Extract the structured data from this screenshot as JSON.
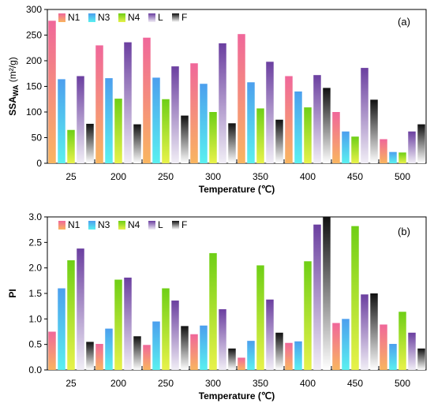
{
  "chart_data": [
    {
      "type": "bar",
      "panel": "(a)",
      "xlabel": "Temperature (℃)",
      "ylabel_main": "SSA",
      "ylabel_sub": "WA",
      "ylabel_unit": " (m²/g)",
      "ylim": [
        0,
        300
      ],
      "yticks": [
        0,
        50,
        100,
        150,
        200,
        250,
        300
      ],
      "categories": [
        "25",
        "200",
        "250",
        "300",
        "350",
        "400",
        "450",
        "500"
      ],
      "legend_position": "top-left",
      "series": [
        {
          "name": "N1",
          "values": [
            278,
            230,
            245,
            195,
            252,
            170,
            100,
            47
          ]
        },
        {
          "name": "N3",
          "values": [
            164,
            166,
            167,
            155,
            158,
            140,
            62,
            22
          ]
        },
        {
          "name": "N4",
          "values": [
            65,
            126,
            125,
            100,
            107,
            109,
            52,
            21
          ]
        },
        {
          "name": "L",
          "values": [
            170,
            236,
            189,
            234,
            198,
            172,
            186,
            62
          ]
        },
        {
          "name": "F",
          "values": [
            77,
            76,
            93,
            78,
            85,
            147,
            124,
            76
          ]
        }
      ]
    },
    {
      "type": "bar",
      "panel": "(b)",
      "xlabel": "Temperature (℃)",
      "ylabel_main": "PI",
      "ylim": [
        0,
        3.0
      ],
      "yticks": [
        "0.0",
        "0.5",
        "1.0",
        "1.5",
        "2.0",
        "2.5",
        "3.0"
      ],
      "categories": [
        "25",
        "200",
        "250",
        "300",
        "350",
        "400",
        "450",
        "500"
      ],
      "legend_position": "top-left",
      "series": [
        {
          "name": "N1",
          "values": [
            0.75,
            0.51,
            0.49,
            0.7,
            0.24,
            0.53,
            0.92,
            0.89
          ]
        },
        {
          "name": "N3",
          "values": [
            1.6,
            0.81,
            0.95,
            0.87,
            0.57,
            0.56,
            1.0,
            0.51
          ]
        },
        {
          "name": "N4",
          "values": [
            2.15,
            1.77,
            1.6,
            2.29,
            2.05,
            2.13,
            2.82,
            1.14
          ]
        },
        {
          "name": "L",
          "values": [
            2.38,
            1.81,
            1.36,
            1.19,
            1.38,
            2.85,
            1.48,
            0.73
          ]
        },
        {
          "name": "F",
          "values": [
            0.55,
            0.66,
            0.86,
            0.42,
            0.73,
            3.05,
            1.5,
            0.42
          ]
        }
      ]
    }
  ],
  "colors": {
    "N1": [
      "#f0679a",
      "#f9b560"
    ],
    "N3": [
      "#4c9fee",
      "#5af0f0"
    ],
    "N4": [
      "#6fcf16",
      "#e8f24a"
    ],
    "L": [
      "#6b3fa0",
      "#f1eef6"
    ],
    "F": [
      "#111111",
      "#ffffff"
    ]
  }
}
